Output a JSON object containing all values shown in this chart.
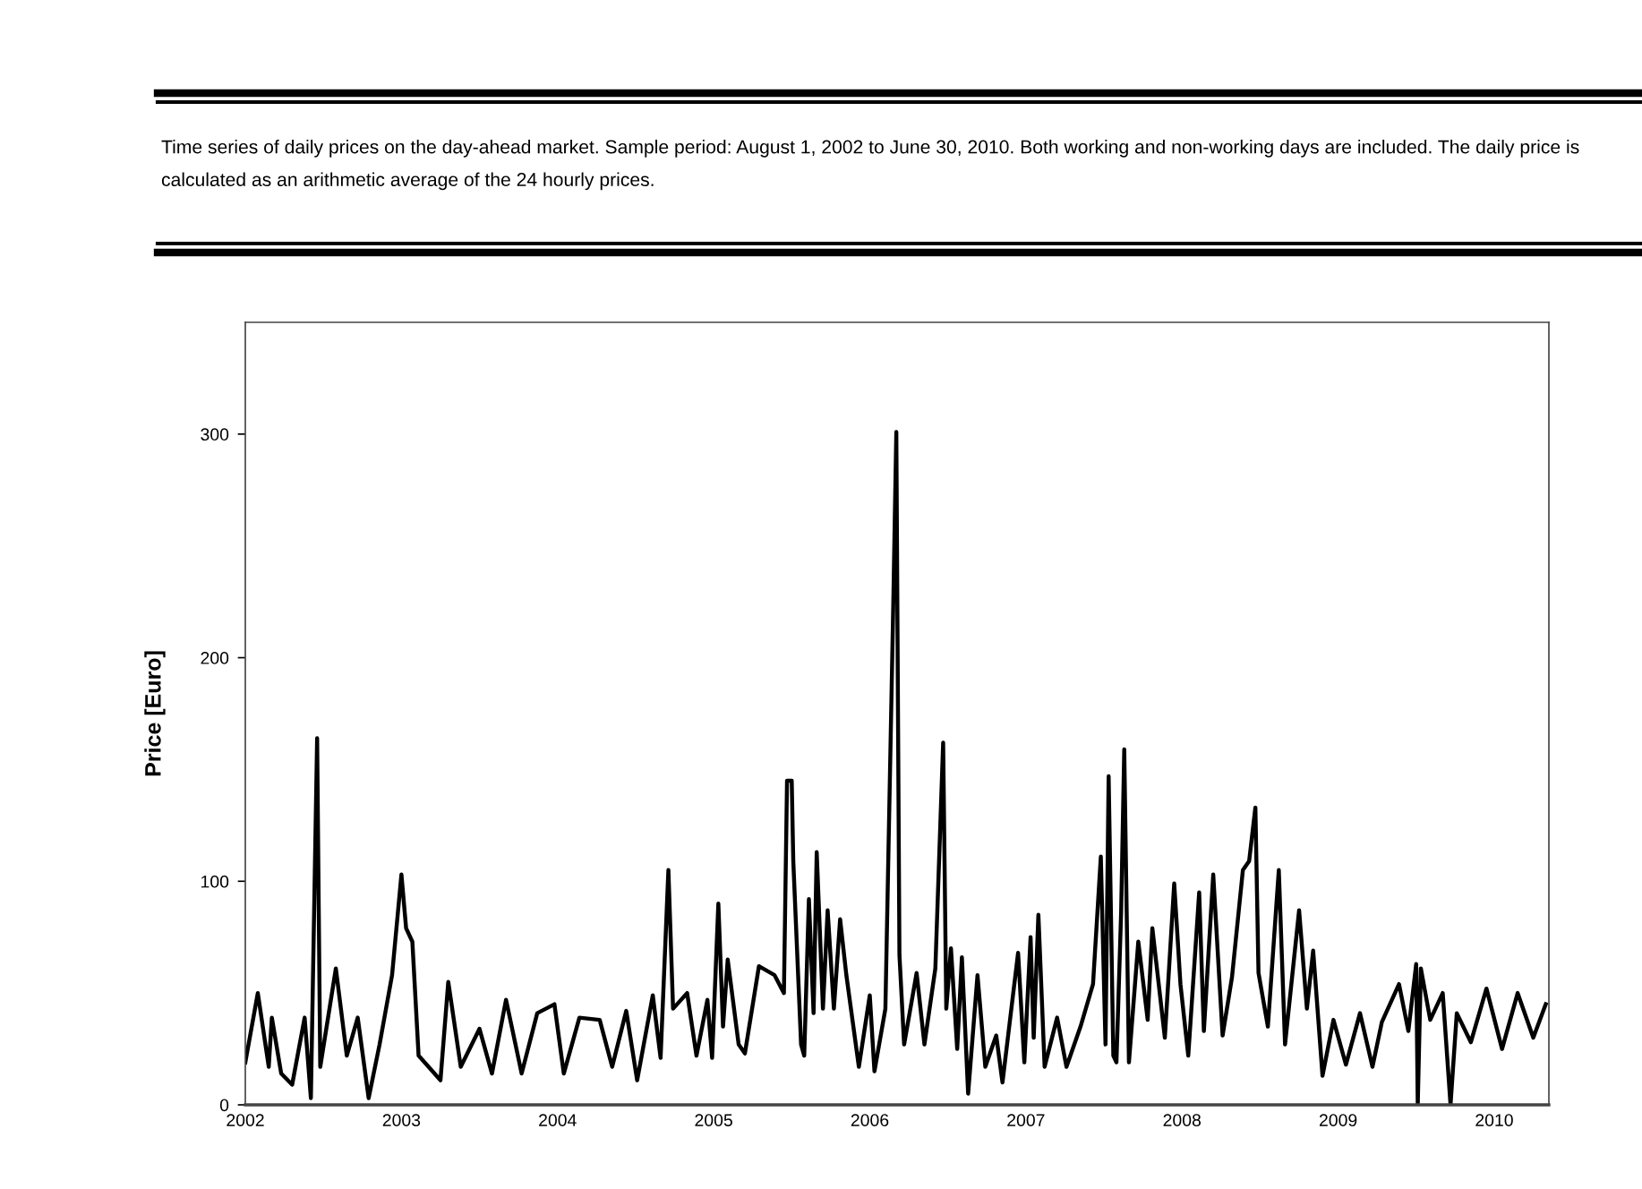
{
  "chart_data": {
    "type": "line",
    "title": "Time series of daily prices on the day-ahead market. Sample period: August 1, 2002 to June 30, 2010. Both working and non-working days are included. The daily price is calculated as an arithmetic average of the 24 hourly prices.",
    "ylabel": "Price [Euro]",
    "x": [
      2002.0,
      2002.08,
      2002.15,
      2002.17,
      2002.23,
      2002.3,
      2002.38,
      2002.42,
      2002.46,
      2002.48,
      2002.58,
      2002.65,
      2002.72,
      2002.79,
      2002.86,
      2002.94,
      2003.0,
      2003.03,
      2003.07,
      2003.11,
      2003.25,
      2003.3,
      2003.38,
      2003.5,
      2003.58,
      2003.67,
      2003.77,
      2003.87,
      2003.98,
      2004.04,
      2004.14,
      2004.27,
      2004.35,
      2004.44,
      2004.51,
      2004.61,
      2004.66,
      2004.71,
      2004.74,
      2004.83,
      2004.89,
      2004.96,
      2004.99,
      2005.03,
      2005.06,
      2005.09,
      2005.16,
      2005.2,
      2005.29,
      2005.39,
      2005.45,
      2005.47,
      2005.5,
      2005.51,
      2005.56,
      2005.58,
      2005.61,
      2005.64,
      2005.66,
      2005.7,
      2005.73,
      2005.77,
      2005.81,
      2005.85,
      2005.93,
      2006.0,
      2006.03,
      2006.1,
      2006.15,
      2006.17,
      2006.19,
      2006.22,
      2006.3,
      2006.35,
      2006.42,
      2006.47,
      2006.49,
      2006.52,
      2006.56,
      2006.59,
      2006.63,
      2006.69,
      2006.74,
      2006.81,
      2006.85,
      2006.95,
      2006.99,
      2007.03,
      2007.05,
      2007.08,
      2007.12,
      2007.2,
      2007.26,
      2007.35,
      2007.43,
      2007.48,
      2007.51,
      2007.53,
      2007.56,
      2007.58,
      2007.61,
      2007.63,
      2007.66,
      2007.72,
      2007.78,
      2007.81,
      2007.89,
      2007.95,
      2007.99,
      2008.04,
      2008.11,
      2008.14,
      2008.2,
      2008.26,
      2008.32,
      2008.39,
      2008.43,
      2008.47,
      2008.49,
      2008.55,
      2008.62,
      2008.66,
      2008.75,
      2008.8,
      2008.84,
      2008.9,
      2008.97,
      2009.05,
      2009.14,
      2009.22,
      2009.28,
      2009.39,
      2009.45,
      2009.5,
      2009.51,
      2009.53,
      2009.59,
      2009.67,
      2009.72,
      2009.76,
      2009.85,
      2009.95,
      2010.05,
      2010.15,
      2010.25,
      2010.33
    ],
    "series": [
      {
        "color": "#000000",
        "values": [
          19,
          50,
          17,
          39,
          14,
          9,
          39,
          3,
          164,
          17,
          61,
          22,
          39,
          3,
          27,
          58,
          103,
          79,
          73,
          22,
          11,
          55,
          17,
          34,
          14,
          47,
          14,
          41,
          45,
          14,
          39,
          38,
          17,
          42,
          11,
          49,
          21,
          105,
          43,
          50,
          22,
          47,
          21,
          90,
          35,
          65,
          27,
          23,
          62,
          58,
          50,
          145,
          145,
          109,
          27,
          22,
          92,
          41,
          113,
          43,
          87,
          43,
          83,
          58,
          17,
          49,
          15,
          43,
          222,
          301,
          67,
          27,
          59,
          27,
          61,
          162,
          43,
          70,
          25,
          66,
          5,
          58,
          17,
          31,
          10,
          68,
          19,
          75,
          30,
          85,
          17,
          39,
          17,
          35,
          54,
          111,
          27,
          147,
          22,
          19,
          86,
          159,
          19,
          73,
          38,
          79,
          30,
          99,
          54,
          22,
          95,
          33,
          103,
          31,
          57,
          105,
          109,
          133,
          59,
          35,
          105,
          27,
          87,
          43,
          69,
          13,
          38,
          18,
          41,
          17,
          37,
          54,
          33,
          63,
          0,
          61,
          38,
          50,
          0,
          41,
          28,
          52,
          25,
          50,
          30,
          45
        ]
      }
    ],
    "xlim": [
      2002,
      2010.35
    ],
    "xticks": [
      2002,
      2003,
      2004,
      2005,
      2006,
      2007,
      2008,
      2009,
      2010
    ],
    "ylim": [
      0,
      350
    ],
    "yticks": [
      0,
      100,
      200,
      300
    ],
    "grid": false,
    "legend": false,
    "marker": "none",
    "line_style": "solid"
  }
}
